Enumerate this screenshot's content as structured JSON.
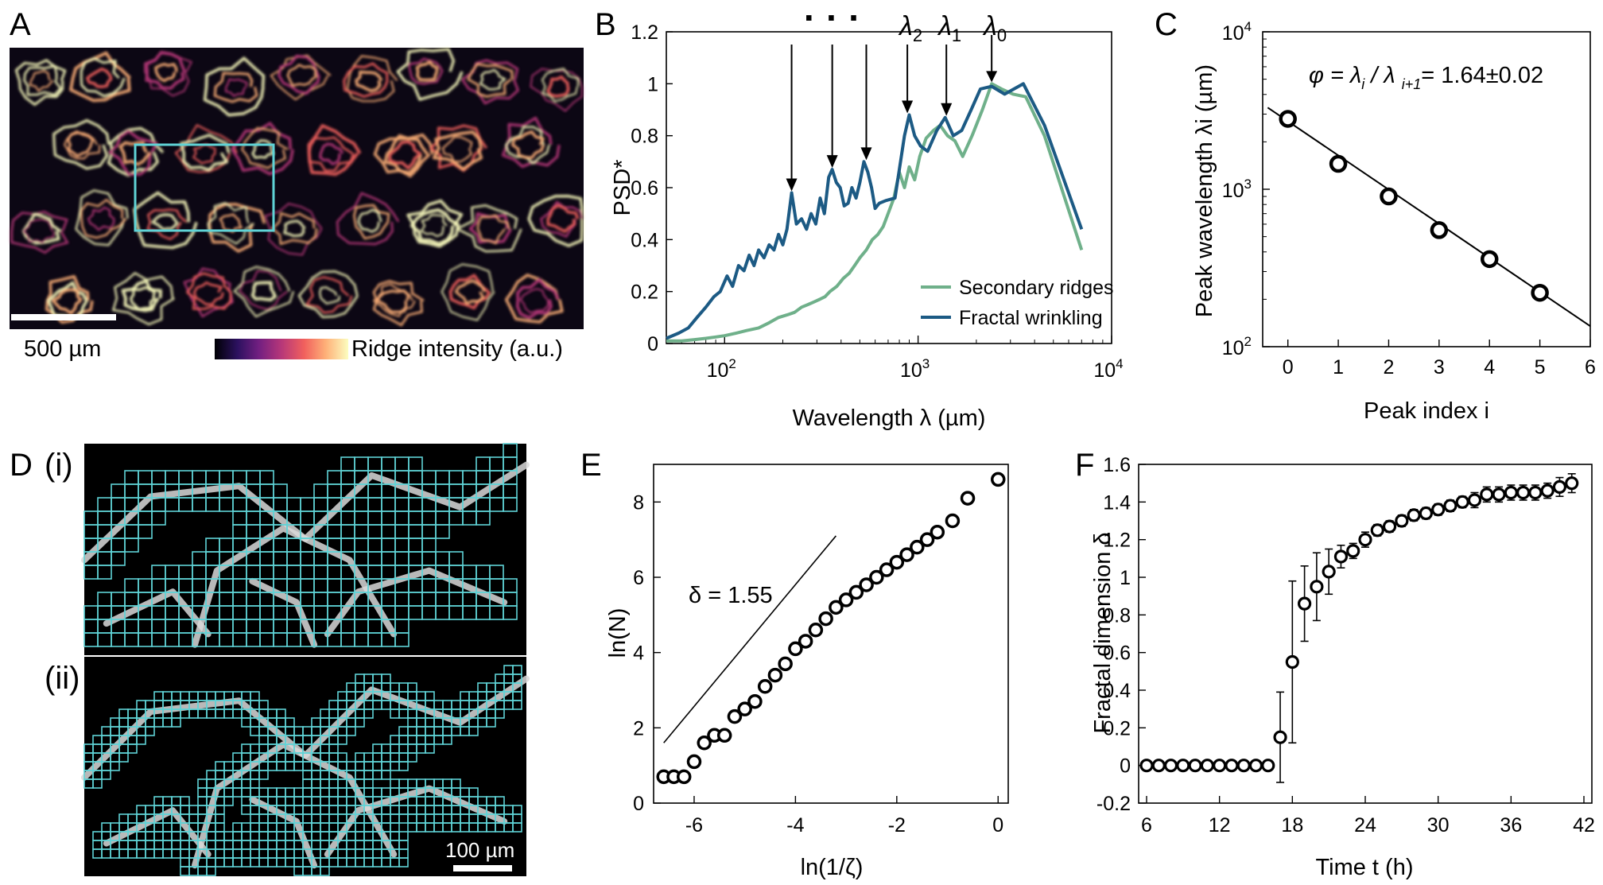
{
  "panels": {
    "a": {
      "letter": "A",
      "scalebar_label": "500 µm",
      "colorbar_label": "Ridge intensity (a.u.)",
      "colormap": [
        "#000004",
        "#2c115f",
        "#721f81",
        "#b73779",
        "#f1605d",
        "#feb078",
        "#fcfdbf"
      ],
      "highlight_color": "#5fd3d6"
    },
    "b": {
      "letter": "B"
    },
    "c": {
      "letter": "C"
    },
    "d": {
      "letter": "D",
      "sub_i": "(i)",
      "sub_ii": "(ii)",
      "scalebar_label": "100 µm",
      "grid_color": "#5fd3d6"
    },
    "e": {
      "letter": "E"
    },
    "f": {
      "letter": "F"
    }
  },
  "chart_data": [
    {
      "id": "B",
      "type": "line",
      "xlabel": "Wavelength λ (µm)",
      "ylabel": "PSD*",
      "xscale": "log",
      "xlim": [
        50,
        10000
      ],
      "ylim": [
        0,
        1.2
      ],
      "yticks": [
        0,
        0.2,
        0.4,
        0.6,
        0.8,
        1,
        1.2
      ],
      "ytick_labels": [
        "0",
        "0.2",
        "0.4",
        "0.6",
        "0.8",
        "1",
        "1.2"
      ],
      "xticks": [
        100,
        1000,
        10000
      ],
      "xtick_labels": [
        [
          "10",
          "2"
        ],
        [
          "10",
          "3"
        ],
        [
          "10",
          "4"
        ]
      ],
      "legend_position": "bottom-right",
      "series": [
        {
          "name": "Secondary ridges",
          "color": "#6fb08a",
          "x": [
            50,
            60,
            70,
            80,
            90,
            100,
            115,
            130,
            150,
            170,
            190,
            210,
            230,
            250,
            270,
            290,
            310,
            330,
            350,
            380,
            410,
            440,
            470,
            500,
            540,
            580,
            620,
            660,
            700,
            750,
            800,
            850,
            900,
            960,
            1020,
            1100,
            1200,
            1300,
            1420,
            1550,
            1700,
            1900,
            2150,
            2400,
            2700,
            3100,
            3600,
            4500,
            5500,
            7000
          ],
          "y": [
            0.01,
            0.01,
            0.015,
            0.02,
            0.025,
            0.03,
            0.04,
            0.05,
            0.06,
            0.08,
            0.1,
            0.11,
            0.12,
            0.14,
            0.15,
            0.16,
            0.17,
            0.18,
            0.2,
            0.22,
            0.25,
            0.27,
            0.3,
            0.33,
            0.36,
            0.4,
            0.42,
            0.45,
            0.5,
            0.56,
            0.66,
            0.6,
            0.68,
            0.63,
            0.72,
            0.79,
            0.82,
            0.84,
            0.8,
            0.78,
            0.72,
            0.8,
            0.9,
            1.0,
            0.98,
            0.96,
            0.95,
            0.8,
            0.6,
            0.36
          ]
        },
        {
          "name": "Fractal wrinkling",
          "color": "#1c5a84",
          "x": [
            50,
            58,
            65,
            72,
            80,
            88,
            95,
            103,
            110,
            118,
            126,
            134,
            142,
            150,
            160,
            170,
            180,
            190,
            200,
            210,
            222,
            235,
            250,
            265,
            280,
            296,
            312,
            328,
            345,
            360,
            378,
            396,
            415,
            435,
            455,
            478,
            500,
            525,
            550,
            575,
            600,
            630,
            680,
            760,
            850,
            900,
            960,
            1030,
            1120,
            1250,
            1380,
            1520,
            1680,
            1880,
            2100,
            2400,
            2800,
            3500,
            4500,
            7000
          ],
          "y": [
            0.02,
            0.04,
            0.06,
            0.1,
            0.14,
            0.18,
            0.2,
            0.26,
            0.22,
            0.3,
            0.28,
            0.34,
            0.3,
            0.36,
            0.33,
            0.38,
            0.36,
            0.42,
            0.38,
            0.44,
            0.58,
            0.46,
            0.48,
            0.44,
            0.5,
            0.46,
            0.56,
            0.5,
            0.64,
            0.67,
            0.62,
            0.6,
            0.53,
            0.54,
            0.6,
            0.56,
            0.62,
            0.7,
            0.66,
            0.6,
            0.52,
            0.54,
            0.55,
            0.56,
            0.8,
            0.88,
            0.8,
            0.76,
            0.74,
            0.82,
            0.87,
            0.8,
            0.82,
            0.9,
            0.98,
            0.99,
            0.96,
            1.0,
            0.84,
            0.44
          ]
        }
      ],
      "annotations": {
        "dots": "· · ·",
        "peak_labels": [
          {
            "base": "λ",
            "sub": "2",
            "x": 880,
            "y": 0.88
          },
          {
            "base": "λ",
            "sub": "1",
            "x": 1400,
            "y": 0.87
          },
          {
            "base": "λ",
            "sub": "0",
            "x": 2400,
            "y": 1.0
          }
        ],
        "unlabeled_arrows": [
          {
            "x": 222,
            "y": 0.58
          },
          {
            "x": 360,
            "y": 0.67
          },
          {
            "x": 540,
            "y": 0.7
          }
        ]
      }
    },
    {
      "id": "C",
      "type": "scatter",
      "xlabel": "Peak index i",
      "ylabel": "Peak wavelength λi (µm)",
      "yscale": "log",
      "xlim": [
        -0.5,
        6
      ],
      "ylim": [
        100,
        10000
      ],
      "xticks": [
        0,
        1,
        2,
        3,
        4,
        5,
        6
      ],
      "yticks": [
        100,
        1000,
        10000
      ],
      "ytick_labels": [
        [
          "10",
          "2"
        ],
        [
          "10",
          "3"
        ],
        [
          "10",
          "4"
        ]
      ],
      "x": [
        0,
        1,
        2,
        3,
        4,
        5
      ],
      "y": [
        2800,
        1450,
        900,
        550,
        360,
        220
      ],
      "fit_line": {
        "x": [
          -0.4,
          6
        ],
        "y": [
          3300,
          135
        ]
      },
      "annotation": {
        "lhs": "φ = λ",
        "i": "i",
        "mid": " / λ ",
        "ip1": "i+1",
        "rhs": "= 1.64±0.02"
      }
    },
    {
      "id": "E",
      "type": "scatter",
      "xlabel": "ln(1/ζ)",
      "ylabel": "ln(N)",
      "xlim": [
        -6.8,
        0.2
      ],
      "ylim": [
        0,
        9
      ],
      "xticks": [
        -6,
        -4,
        -2,
        0
      ],
      "xtick_labels": [
        "-6",
        "-4",
        "-2",
        "0"
      ],
      "yticks": [
        0,
        2,
        4,
        6,
        8
      ],
      "x": [
        -6.6,
        -6.4,
        -6.2,
        -6.0,
        -5.8,
        -5.6,
        -5.4,
        -5.2,
        -5.0,
        -4.8,
        -4.6,
        -4.4,
        -4.2,
        -4.0,
        -3.8,
        -3.6,
        -3.4,
        -3.2,
        -3.0,
        -2.8,
        -2.6,
        -2.4,
        -2.2,
        -2.0,
        -1.8,
        -1.6,
        -1.4,
        -1.2,
        -0.9,
        -0.6,
        0.0
      ],
      "y": [
        0.7,
        0.7,
        0.7,
        1.1,
        1.6,
        1.8,
        1.8,
        2.3,
        2.5,
        2.7,
        3.1,
        3.4,
        3.7,
        4.1,
        4.3,
        4.6,
        4.9,
        5.2,
        5.4,
        5.6,
        5.8,
        6.0,
        6.2,
        6.4,
        6.6,
        6.8,
        7.0,
        7.2,
        7.5,
        8.1,
        8.6
      ],
      "reference_line": {
        "x": [
          -6.6,
          -3.2
        ],
        "y": [
          1.6,
          7.1
        ]
      },
      "annotation": "δ = 1.55"
    },
    {
      "id": "F",
      "type": "scatter",
      "xlabel": "Time  t (h)",
      "ylabel": "Fractal dimension δ",
      "xlim": [
        6,
        42
      ],
      "ylim": [
        -0.2,
        1.6
      ],
      "xticks": [
        6,
        12,
        18,
        24,
        30,
        36,
        42
      ],
      "yticks": [
        -0.2,
        0,
        0.2,
        0.4,
        0.6,
        0.8,
        1,
        1.2,
        1.4,
        1.6
      ],
      "ytick_labels": [
        "-0.2",
        "0",
        "0.2",
        "0.4",
        "0.6",
        "0.8",
        "1",
        "1.2",
        "1.4",
        "1.6"
      ],
      "x": [
        6,
        7,
        8,
        9,
        10,
        11,
        12,
        13,
        14,
        15,
        16,
        17,
        18,
        19,
        20,
        21,
        22,
        23,
        24,
        25,
        26,
        27,
        28,
        29,
        30,
        31,
        32,
        33,
        34,
        35,
        36,
        37,
        38,
        39,
        40,
        41
      ],
      "y": [
        0,
        0,
        0,
        0,
        0,
        0,
        0,
        0,
        0,
        0,
        0,
        0.15,
        0.55,
        0.86,
        0.95,
        1.03,
        1.11,
        1.14,
        1.2,
        1.25,
        1.27,
        1.3,
        1.33,
        1.34,
        1.36,
        1.38,
        1.4,
        1.41,
        1.44,
        1.44,
        1.45,
        1.45,
        1.45,
        1.46,
        1.48,
        1.5
      ],
      "err": [
        0,
        0,
        0,
        0,
        0,
        0,
        0,
        0,
        0,
        0,
        0,
        0.24,
        0.43,
        0.2,
        0.18,
        0.12,
        0.06,
        0.04,
        0.04,
        0.03,
        0.03,
        0.03,
        0.03,
        0.03,
        0.03,
        0.03,
        0.03,
        0.04,
        0.04,
        0.04,
        0.04,
        0.04,
        0.04,
        0.04,
        0.05,
        0.05
      ]
    }
  ]
}
